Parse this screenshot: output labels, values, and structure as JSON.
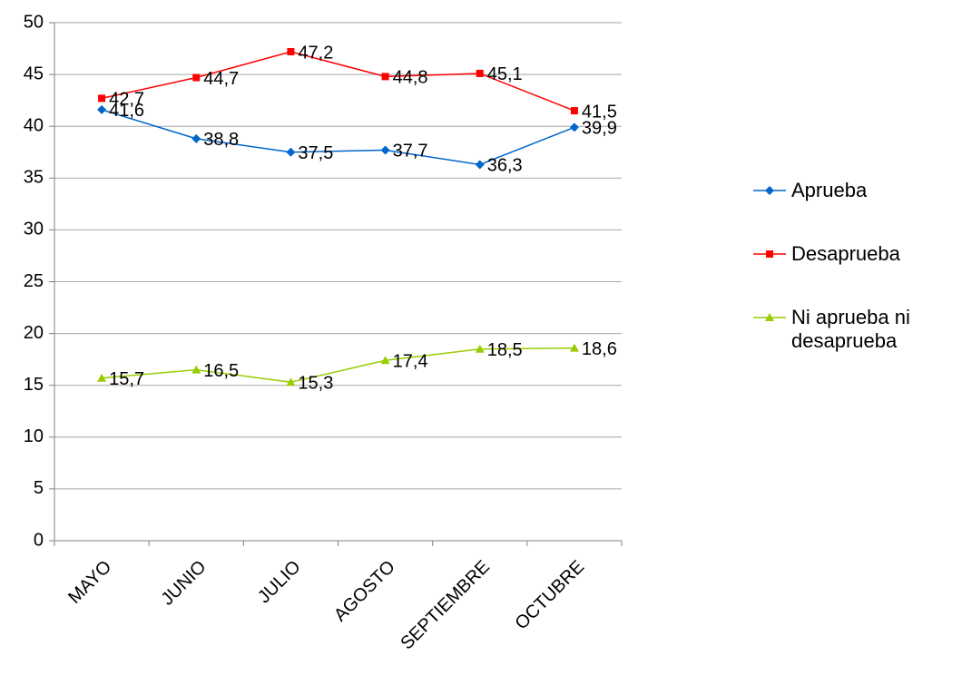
{
  "chart_data": {
    "type": "line",
    "categories": [
      "MAYO",
      "JUNIO",
      "JULIO",
      "AGOSTO",
      "SEPTIEMBRE",
      "OCTUBRE"
    ],
    "series": [
      {
        "name": "Aprueba",
        "color": "#0066cc",
        "marker": "diamond",
        "values": [
          41.6,
          38.8,
          37.5,
          37.7,
          36.3,
          39.9
        ],
        "value_labels": [
          "41,6",
          "38,8",
          "37,5",
          "37,7",
          "36,3",
          "39,9"
        ]
      },
      {
        "name": "Desaprueba",
        "color": "#ff0000",
        "marker": "square",
        "values": [
          42.7,
          44.7,
          47.2,
          44.8,
          45.1,
          41.5
        ],
        "value_labels": [
          "42,7",
          "44,7",
          "47,2",
          "44,8",
          "45,1",
          "41,5"
        ]
      },
      {
        "name": "Ni aprueba ni desaprueba",
        "color": "#99cc00",
        "marker": "triangle",
        "values": [
          15.7,
          16.5,
          15.3,
          17.4,
          18.5,
          18.6
        ],
        "value_labels": [
          "15,7",
          "16,5",
          "15,3",
          "17,4",
          "18,5",
          "18,6"
        ]
      }
    ],
    "ylim": [
      0,
      50
    ],
    "yticks": [
      0,
      5,
      10,
      15,
      20,
      25,
      30,
      35,
      40,
      45,
      50
    ],
    "grid": true,
    "legend": "right"
  }
}
